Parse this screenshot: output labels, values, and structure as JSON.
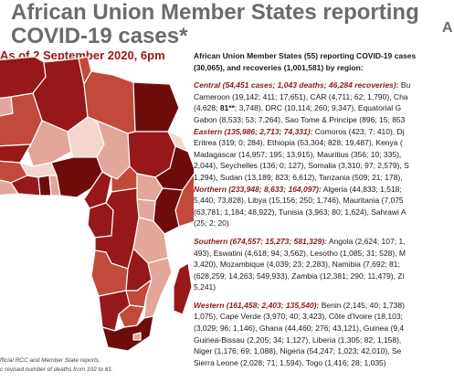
{
  "title": {
    "line1": "African Union Member States reporting",
    "line2": "COVID-19 cases*",
    "right_fragment": "A",
    "date": "As of 2 September 2020, 6pm"
  },
  "summary": {
    "intro_line1": "African Union Member States (55) reporting COVID-19 cases",
    "intro_line2": "(30,065), and recoveries (1,001,581) by region:",
    "central": {
      "header": "Central (54,451 cases; 1,043 deaths; 46,284 recoveries):",
      "l1_tail": " Bu",
      "l2": "Cameroon (19,142; 411; 17,651), CAR (4,711; 62; 1,790), Cha",
      "l3_pre": "(4,628; ",
      "l3_bold": "81**",
      "l3_post": "; 3,748), DRC (10,114; 260; 9,347), Equatorial G",
      "l4": "Gabon (8,533; 53; 7,264), Sao Tome & Principe (896; 15; 853"
    },
    "eastern": {
      "header": "Eastern (135,986; 2,713; 74,331):",
      "l1_tail": " Comoros (423; 7; 410), Dj",
      "l2": "Eritrea (319; 0; 284), Ethiopia (53,304; 828; 19,487), Kenya (",
      "l3": "Madagascar (14,957; 195; 13,915), Mauritius (356; 10; 335),",
      "l4": "2,044), Seychelles (136; 0; 127), Somalia (3,310; 97; 2,579), S",
      "l5": "1,294), Sudan (13,189; 823; 6,612), Tanzania (509; 21; 178),"
    },
    "northern": {
      "header": "Northern (233,948; 8,633; 164,097):",
      "l1_tail": " Algeria (44,833; 1,518;",
      "l2": "5,440; 73,828), Libya (15,156; 250; 1,746), Mauritania (7,075",
      "l3": "(63,781; 1,184; 48,922), Tunisia (3,963; 80; 1,624), Sahrawi A",
      "l4": "(25; 2; 20)"
    },
    "southern": {
      "header": "Southern (674,557; 15,273; 581,329):",
      "l1_tail": " Angola (2,624; 107; 1,",
      "l2": "493), Eswatini (4,618; 94; 3,562), Lesotho (1,085; 31; 528), M",
      "l3": "3,420), Mozambique (4,039; 23; 2,283), Namibia (7,692; 81;",
      "l4": "(628,259; 14,263; 549,933), Zambia (12,381; 290; 11,479), Zi",
      "l5": "5,241)"
    },
    "western": {
      "header": "Western (161,458; 2,403; 135,540):",
      "l1_tail": " Benin (2,145; 40; 1,738)",
      "l2": "1,075), Cape Verde (3,970; 40; 3,423), Côte d'Ivoire (18,103;",
      "l3": "(3,029; 96; 1,146), Ghana (44,460; 276; 43,121), Guinea (9,4",
      "l4": "Guinea-Bissau (2,205; 34; 1,127), Liberia (1,305; 82; 1,158),",
      "l5": "Niger (1,176; 69; 1,088), Nigeria (54,247; 1,023; 42,010), Se",
      "l6": "Sierra Leone (2,028; 71; 1,594), Togo (1,416; 28; 1,035)"
    }
  },
  "footnotes": {
    "line1": "fficial RCC and Member State reports.",
    "line2": "c revised number of deaths from 102 to 81."
  },
  "colors": {
    "title_gray": "#6b6b6b",
    "date_red": "#a01818",
    "region_red": "#8b1a1a",
    "map_darkest": "#6e0c0c",
    "map_dark": "#961818",
    "map_mid": "#c24a3a",
    "map_light": "#e3a69b",
    "map_lightest": "#f4d6cf",
    "map_border": "#ffffff"
  }
}
